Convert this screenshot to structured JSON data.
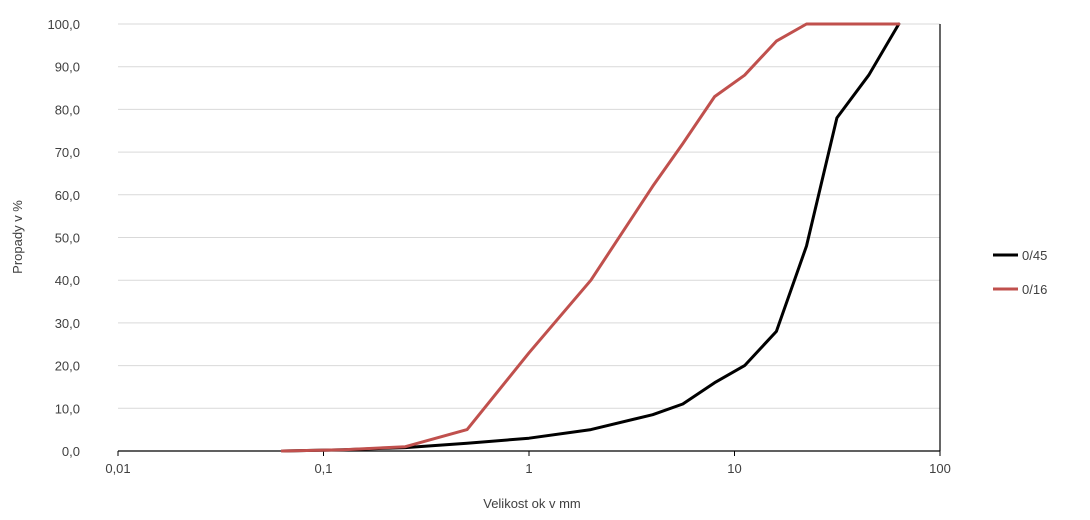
{
  "chart_data": {
    "type": "line",
    "title": "",
    "xlabel": "Velikost ok v mm",
    "ylabel": "Propady v %",
    "x_scale": "log",
    "xlim": [
      0.01,
      100
    ],
    "ylim": [
      0,
      100
    ],
    "grid": "horizontal",
    "legend_position": "right",
    "x_ticks": [
      {
        "value": 0.01,
        "label": "0,01"
      },
      {
        "value": 0.1,
        "label": "0,1"
      },
      {
        "value": 1,
        "label": "1"
      },
      {
        "value": 10,
        "label": "10"
      },
      {
        "value": 100,
        "label": "100"
      }
    ],
    "y_ticks": [
      {
        "value": 0,
        "label": "0,0"
      },
      {
        "value": 10,
        "label": "10,0"
      },
      {
        "value": 20,
        "label": "20,0"
      },
      {
        "value": 30,
        "label": "30,0"
      },
      {
        "value": 40,
        "label": "40,0"
      },
      {
        "value": 50,
        "label": "50,0"
      },
      {
        "value": 60,
        "label": "60,0"
      },
      {
        "value": 70,
        "label": "70,0"
      },
      {
        "value": 80,
        "label": "80,0"
      },
      {
        "value": 90,
        "label": "90,0"
      },
      {
        "value": 100,
        "label": "100,0"
      }
    ],
    "series": [
      {
        "name": "0/45",
        "color": "#000000",
        "x": [
          0.063,
          0.125,
          0.25,
          0.5,
          1,
          2,
          4,
          5.6,
          8,
          11.2,
          16,
          22.4,
          31.5,
          45,
          63
        ],
        "y": [
          0,
          0.3,
          0.8,
          1.8,
          3,
          5,
          8.5,
          11,
          16,
          20,
          28,
          48,
          78,
          88,
          100
        ]
      },
      {
        "name": "0/16",
        "color": "#C0504D",
        "x": [
          0.063,
          0.125,
          0.25,
          0.5,
          1,
          2,
          4,
          5.6,
          8,
          11.2,
          16,
          22.4,
          31.5,
          63
        ],
        "y": [
          0,
          0.3,
          1,
          5,
          23,
          40,
          62,
          72,
          83,
          88,
          96,
          100,
          100,
          100
        ]
      }
    ]
  }
}
